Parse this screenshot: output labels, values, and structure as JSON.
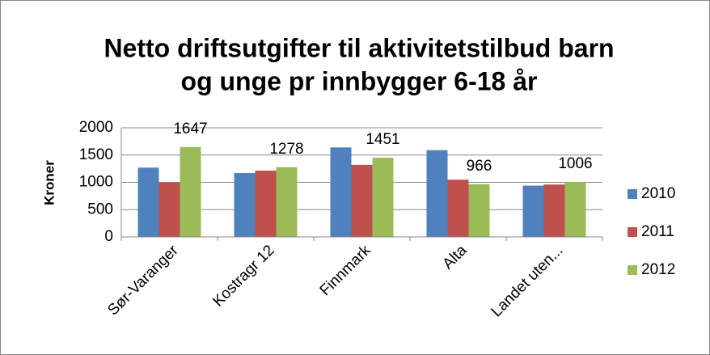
{
  "chart_data": {
    "type": "bar",
    "title": [
      "Netto driftsutgifter til aktivitetstilbud barn",
      "og unge pr innbygger 6-18 år"
    ],
    "y_label": "Kroner",
    "categories": [
      "Sør-Varanger",
      "Kostragr 12",
      "Finnmark",
      "Alta",
      "Landet uten..."
    ],
    "series": [
      {
        "name": "2010",
        "color": "#4f81bd",
        "values": [
          1270,
          1170,
          1640,
          1590,
          940
        ],
        "show_labels": false
      },
      {
        "name": "2011",
        "color": "#c0504d",
        "values": [
          1000,
          1215,
          1320,
          1050,
          960
        ],
        "show_labels": false
      },
      {
        "name": "2012",
        "color": "#9bbb59",
        "values": [
          1647,
          1278,
          1451,
          966,
          1006
        ],
        "show_labels": true
      }
    ],
    "ylim": [
      0,
      2000
    ],
    "yticks": [
      0,
      500,
      1000,
      1500,
      2000
    ],
    "grid": true,
    "legend": "right"
  }
}
